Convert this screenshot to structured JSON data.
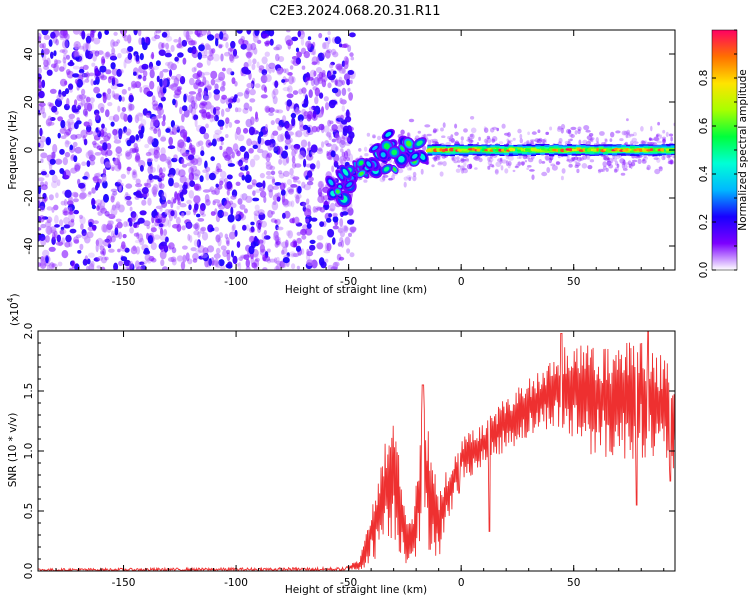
{
  "figure": {
    "title": "C2E3.2024.068.20.31.R11"
  },
  "chart_data": [
    {
      "type": "heatmap",
      "name": "spectrogram",
      "xlabel": "Height of straight line (km)",
      "ylabel": "Frequency (Hz)",
      "xlim": [
        -188,
        95
      ],
      "ylim": [
        -50,
        50
      ],
      "xticks": [
        -150,
        -100,
        -50,
        0,
        50
      ],
      "yticks": [
        -40,
        -20,
        0,
        20,
        40
      ],
      "colorbar": {
        "label": "Normalized spectral amplitude",
        "range": [
          0,
          1
        ],
        "ticks": [
          "0.0",
          "0.2",
          "0.4",
          "0.6",
          "0.8"
        ],
        "colors": [
          "#ffffff",
          "#7c00ff",
          "#1800ff",
          "#00b8ff",
          "#00ffd6",
          "#00ff3c",
          "#a8ff00",
          "#ffe400",
          "#ff7000",
          "#ff0062"
        ]
      },
      "features": {
        "noise_region_x": [
          -188,
          -52
        ],
        "noise_amplitude": [
          0.05,
          0.25
        ],
        "ramp": [
          [
            -58,
            -18
          ],
          [
            -50,
            -12
          ],
          [
            -40,
            -3
          ],
          [
            -30,
            -3
          ],
          [
            -22,
            -1
          ],
          [
            -15,
            0
          ]
        ],
        "ramp_amplitude": [
          0.3,
          0.6
        ],
        "line_region_x": [
          -15,
          95
        ],
        "line_frequency": 0,
        "line_amplitude": [
          0.5,
          1.0
        ]
      }
    },
    {
      "type": "line",
      "name": "snr",
      "xlabel": "Height of straight line (km)",
      "ylabel": "SNR (10 * v/v)",
      "multiplier_label": "(x10",
      "multiplier_exp": "4",
      "multiplier_close": ")",
      "xlim": [
        -188,
        95
      ],
      "ylim": [
        0,
        2.0
      ],
      "xticks": [
        -150,
        -100,
        -50,
        0,
        50
      ],
      "yticks": [
        "0.0",
        "0.5",
        "1.0",
        "1.5",
        "2.0"
      ],
      "series": [
        {
          "color": "#ee3030",
          "envelope": [
            {
              "x": -188,
              "lo": 0.0,
              "hi": 0.02
            },
            {
              "x": -52,
              "lo": 0.0,
              "hi": 0.03
            },
            {
              "x": -45,
              "lo": 0.0,
              "hi": 0.1
            },
            {
              "x": -38,
              "lo": 0.1,
              "hi": 0.7
            },
            {
              "x": -33,
              "lo": 0.3,
              "hi": 1.15
            },
            {
              "x": -29,
              "lo": 0.2,
              "hi": 1.3
            },
            {
              "x": -25,
              "lo": 0.05,
              "hi": 0.5
            },
            {
              "x": -21,
              "lo": 0.1,
              "hi": 0.45
            },
            {
              "x": -17,
              "lo": 0.2,
              "hi": 1.55
            },
            {
              "x": -13,
              "lo": 0.15,
              "hi": 0.95
            },
            {
              "x": -10,
              "lo": 0.1,
              "hi": 0.7
            },
            {
              "x": -5,
              "lo": 0.45,
              "hi": 0.9
            },
            {
              "x": 0,
              "lo": 0.75,
              "hi": 1.1
            },
            {
              "x": 10,
              "lo": 0.85,
              "hi": 1.25
            },
            {
              "x": 20,
              "lo": 1.0,
              "hi": 1.45
            },
            {
              "x": 30,
              "lo": 1.1,
              "hi": 1.6
            },
            {
              "x": 40,
              "lo": 1.2,
              "hi": 1.75
            },
            {
              "x": 50,
              "lo": 1.05,
              "hi": 1.95
            },
            {
              "x": 60,
              "lo": 0.95,
              "hi": 1.85
            },
            {
              "x": 70,
              "lo": 0.9,
              "hi": 1.9
            },
            {
              "x": 80,
              "lo": 0.95,
              "hi": 1.95
            },
            {
              "x": 95,
              "lo": 0.8,
              "hi": 1.7
            }
          ],
          "dips": [
            {
              "x": -1,
              "value": 0.65
            },
            {
              "x": 12.5,
              "value": 0.33
            },
            {
              "x": 78,
              "value": 0.55
            },
            {
              "x": 93,
              "value": 0.75
            }
          ],
          "peaks": [
            {
              "x": -17,
              "value": 1.55
            },
            {
              "x": 44.5,
              "value": 1.98
            },
            {
              "x": 83,
              "value": 2.0
            }
          ]
        }
      ]
    }
  ]
}
